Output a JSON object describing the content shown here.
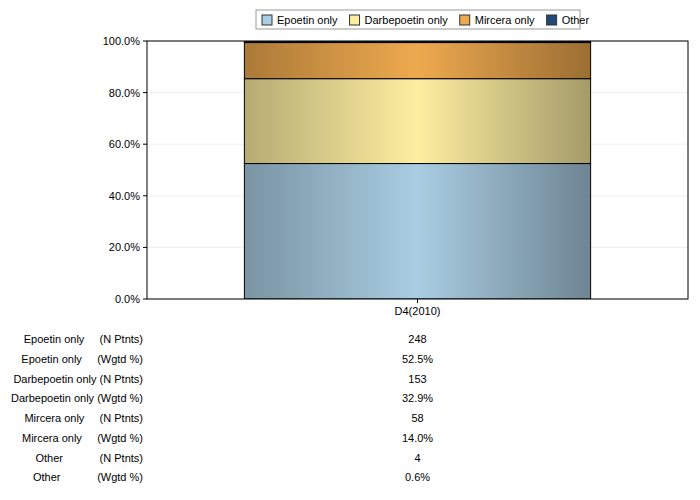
{
  "chart_data": {
    "type": "bar",
    "stacked": true,
    "grid": true,
    "legend": "top",
    "categories": [
      "D4(2010)"
    ],
    "ylim": [
      0,
      100
    ],
    "yticks": [
      {
        "value": 0,
        "label": "0.0%"
      },
      {
        "value": 20,
        "label": "20.0%"
      },
      {
        "value": 40,
        "label": "40.0%"
      },
      {
        "value": 60,
        "label": "60.0%"
      },
      {
        "value": 80,
        "label": "80.0%"
      },
      {
        "value": 100,
        "label": "100.0%"
      }
    ],
    "series": [
      {
        "name": "Epoetin only",
        "color": "#a9cde2",
        "values": [
          52.5
        ],
        "value_labels": [
          "52.5%"
        ],
        "n_patients": [
          248
        ],
        "n_row_label": "Epoetin only     (N Ptnts)",
        "pct_row_label": "Epoetin only     (Wgtd %)"
      },
      {
        "name": "Darbepoetin only",
        "color": "#fdeea0",
        "values": [
          32.9
        ],
        "value_labels": [
          "32.9%"
        ],
        "n_patients": [
          153
        ],
        "n_row_label": "Darbepoetin only (N Ptnts)",
        "pct_row_label": "Darbepoetin only (Wgtd %)"
      },
      {
        "name": "Mircera only",
        "color": "#eea94e",
        "values": [
          14.0
        ],
        "value_labels": [
          "14.0%"
        ],
        "n_patients": [
          58
        ],
        "n_row_label": "Mircera only     (N Ptnts)",
        "pct_row_label": "Mircera only     (Wgtd %)"
      },
      {
        "name": "Other",
        "color": "#23497a",
        "values": [
          0.6
        ],
        "value_labels": [
          "0.6%"
        ],
        "n_patients": [
          4
        ],
        "n_row_label": "Other            (N Ptnts)",
        "pct_row_label": "Other            (Wgtd %)"
      }
    ]
  }
}
